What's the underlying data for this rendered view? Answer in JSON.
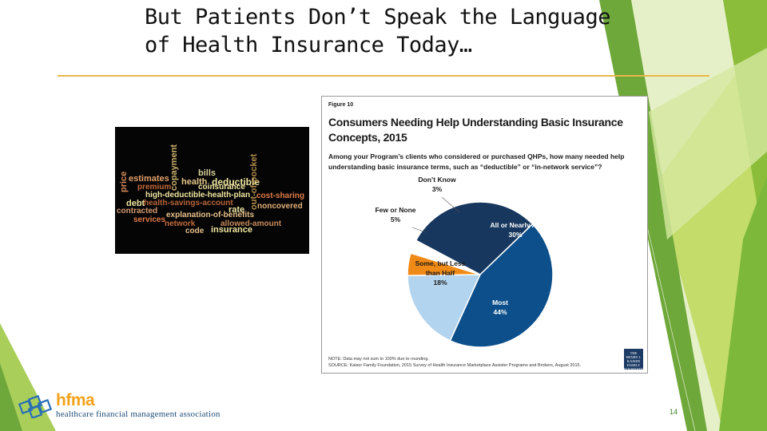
{
  "slide": {
    "title": "But Patients Don’t Speak the Language of Health Insurance Today…",
    "page_number": "14"
  },
  "wordcloud": {
    "words": [
      {
        "text": "bills",
        "color": "#d9d19a"
      },
      {
        "text": "estimates",
        "color": "#e3a06a"
      },
      {
        "text": "health",
        "color": "#e7c88a"
      },
      {
        "text": "deductible",
        "color": "#f0e5a0"
      },
      {
        "text": "premium",
        "color": "#c56a3a"
      },
      {
        "text": "coinsurance",
        "color": "#f0e5a0"
      },
      {
        "text": "high-deductible-health-plan",
        "color": "#f0e5a0"
      },
      {
        "text": "cost-sharing",
        "color": "#e07a48"
      },
      {
        "text": "debt",
        "color": "#f0e5a0"
      },
      {
        "text": "health-savings-account",
        "color": "#b8643a"
      },
      {
        "text": "noncovered",
        "color": "#e2b07a"
      },
      {
        "text": "contracted",
        "color": "#d59a70"
      },
      {
        "text": "rate",
        "color": "#f0e5a0"
      },
      {
        "text": "explanation-of-benefits",
        "color": "#e7c08a"
      },
      {
        "text": "services",
        "color": "#e07a48"
      },
      {
        "text": "network",
        "color": "#c06a3a"
      },
      {
        "text": "allowed-amount",
        "color": "#c88a5a"
      },
      {
        "text": "code",
        "color": "#e7c08a"
      },
      {
        "text": "insurance",
        "color": "#f0e5a0"
      },
      {
        "text": "price",
        "color": "#d48a5a"
      },
      {
        "text": "copayment",
        "color": "#c9b06a"
      },
      {
        "text": "out-of-pocket",
        "color": "#b08a4a"
      }
    ]
  },
  "figure": {
    "label": "Figure 10",
    "title": "Consumers Needing Help Understanding Basic Insurance Concepts, 2015",
    "question": "Among your Program’s clients who considered or purchased QHPs, how many needed help understanding basic insurance terms, such as “deductible” or “in-network service”?",
    "note": "NOTE: Data may not sum to 100% due to rounding.",
    "source": "SOURCE: Kaiser Family Foundation, 2015 Survey of Health Insurance Marketplace Assister Programs and Brokers, August 2015.",
    "logo_text": "THE HENRY J. KAISER FAMILY FOUNDATION"
  },
  "chart_data": {
    "type": "pie",
    "title": "Consumers Needing Help Understanding Basic Insurance Concepts, 2015",
    "slices": [
      {
        "label": "All or Nearly All",
        "value": 30,
        "display": "30%",
        "color": "#17375e"
      },
      {
        "label": "Most",
        "value": 44,
        "display": "44%",
        "color": "#0c4f8b"
      },
      {
        "label": "Some, but Less than Half",
        "value": 18,
        "display": "18%",
        "color": "#b3d4ee"
      },
      {
        "label": "Few or None",
        "value": 5,
        "display": "5%",
        "color": "#f08a17"
      },
      {
        "label": "Don’t Know",
        "value": 3,
        "display": "3%",
        "color": "#ffffff"
      }
    ]
  },
  "logo": {
    "name": "hfma",
    "tagline": "healthcare financial management association"
  },
  "colors": {
    "accent_rule": "#e8b84a",
    "green_light": "#c3dc6a",
    "green_mid": "#8cbd3a",
    "green_dark": "#5e9b2e"
  }
}
